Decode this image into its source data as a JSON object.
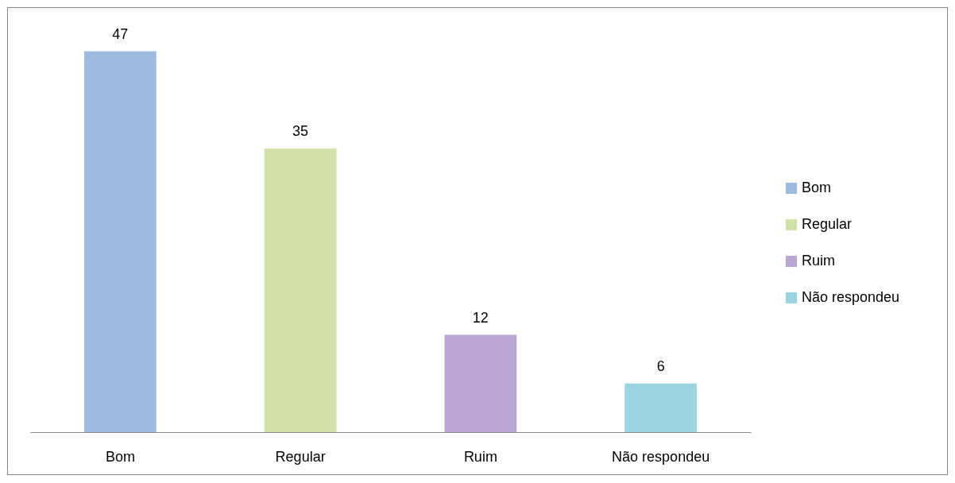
{
  "chart_data": {
    "type": "bar",
    "categories": [
      "Bom",
      "Regular",
      "Ruim",
      "Não respondeu"
    ],
    "stacked": true,
    "series": [
      {
        "name": "Bom",
        "color": "#9dbbe0",
        "values": [
          47,
          null,
          null,
          null
        ]
      },
      {
        "name": "Regular",
        "color": "#d2e1a8",
        "values": [
          null,
          35,
          null,
          null
        ]
      },
      {
        "name": "Ruim",
        "color": "#b9a7d3",
        "values": [
          null,
          null,
          12,
          null
        ]
      },
      {
        "name": "Não respondeu",
        "color": "#9cd5e2",
        "values": [
          null,
          null,
          null,
          6
        ]
      }
    ],
    "data_labels": true,
    "legend": "right",
    "tick_labels": "x"
  }
}
